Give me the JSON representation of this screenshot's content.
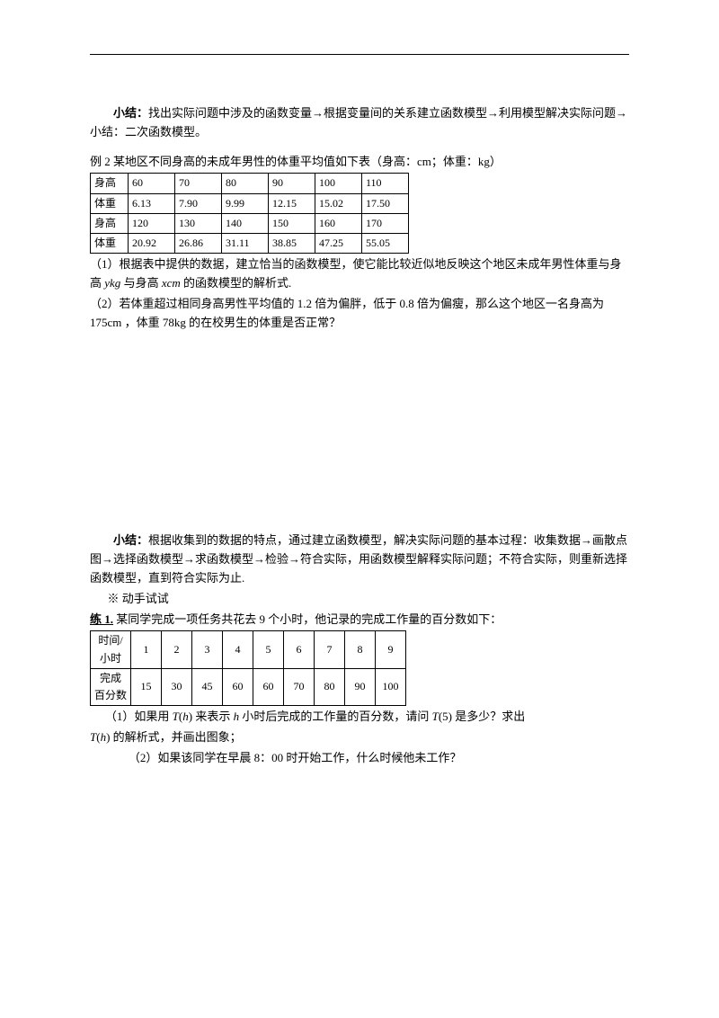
{
  "summary1": {
    "label": "小结：",
    "text": "找出实际问题中涉及的函数变量→根据变量间的关系建立函数模型→利用模型解决实际问题→小结：二次函数模型。"
  },
  "example2": {
    "title": "例 2  某地区不同身高的未成年男性的体重平均值如下表（身高：cm；体重：kg）",
    "table": {
      "rows": [
        [
          "身高",
          "60",
          "70",
          "80",
          "90",
          "100",
          "110"
        ],
        [
          "体重",
          "6.13",
          "7.90",
          "9.99",
          "12.15",
          "15.02",
          "17.50"
        ],
        [
          "身高",
          "120",
          "130",
          "140",
          "150",
          "160",
          "170"
        ],
        [
          "体重",
          "20.92",
          "26.86",
          "31.11",
          "38.85",
          "47.25",
          "55.05"
        ]
      ]
    },
    "q1_prefix": "（1）根据表中提供的数据，建立恰当的函数模型，使它能比较近似地反映这个地区未成年男性体重与身高 ",
    "q1_var1": "ykg",
    "q1_mid": " 与身高 ",
    "q1_var2": "xcm",
    "q1_suffix": " 的函数模型的解析式.",
    "q2": "（2）若体重超过相同身高男性平均值的 1.2 倍为偏胖，低于 0.8 倍为偏瘦，那么这个地区一名身高为 175cm ，体重 78kg 的在校男生的体重是否正常？"
  },
  "summary2": {
    "label": "小结：",
    "text": "根据收集到的数据的特点，通过建立函数模型，解决实际问题的基本过程：收集数据→画散点图→选择函数模型→求函数模型→检验→符合实际，用函数模型解释实际问题；不符合实际，则重新选择函数模型，直到符合实际为止."
  },
  "tryit": {
    "label": "※ 动手试试"
  },
  "practice1": {
    "title_prefix": "练 1.",
    "title": "  某同学完成一项任务共花去 9 个小时，他记录的完成工作量的百分数如下：",
    "table": {
      "header_row": [
        "时间/小时",
        "1",
        "2",
        "3",
        "4",
        "5",
        "6",
        "7",
        "8",
        "9"
      ],
      "data_row": [
        "完成百分数",
        "15",
        "30",
        "45",
        "60",
        "60",
        "70",
        "80",
        "90",
        "100"
      ]
    },
    "q1_a": "（1）如果用 ",
    "q1_th": "T",
    "q1_h": "h",
    "q1_b": " 来表示 ",
    "q1_c": " 小时后完成的工作量的百分数，请问 ",
    "q1_d": "(5) 是多少？求出",
    "q1_e": " 的解析式，并画出图象；",
    "q2": "（2）如果该同学在早晨 8：00 时开始工作，什么时候他未工作？"
  }
}
